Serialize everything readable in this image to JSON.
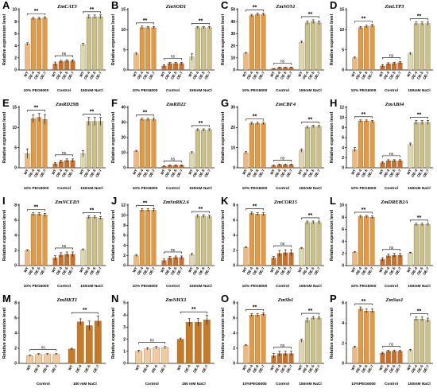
{
  "colors": {
    "peg": [
      "#f0b87a",
      "#e39a43",
      "#e39a43",
      "#e39a43"
    ],
    "ctrl": [
      "#cc6f28",
      "#cc6f28",
      "#cc6f28",
      "#cc6f28"
    ],
    "nacl": [
      "#dcd8b0",
      "#c9c189",
      "#c9c189",
      "#c9c189"
    ],
    "hk_ctrl": [
      "#f2caa0",
      "#f2caa0",
      "#f2caa0",
      "#f2caa0"
    ],
    "hk_nacl": [
      "#c77a26",
      "#c77a26",
      "#c77a26",
      "#c77a26"
    ]
  },
  "common": {
    "ylabel": "Relative expression level",
    "categories": [
      "WT",
      "OE-4",
      "OE-5",
      "OE-7"
    ],
    "sig": "**",
    "ns": "ns"
  },
  "chart_data": [
    {
      "letter": "A",
      "gene": "ZmCAT3",
      "type": "bar",
      "ylim": [
        0,
        10
      ],
      "yticks": [
        0,
        2,
        4,
        6,
        8,
        10
      ],
      "groups": [
        {
          "name": "10% PEG6000",
          "color": "peg",
          "values": [
            4.3,
            8.5,
            8.5,
            8.6
          ],
          "errors": [
            0.2,
            0.2,
            0.2,
            0.2
          ],
          "sig": "**"
        },
        {
          "name": "Control",
          "color": "ctrl",
          "values": [
            1.0,
            1.4,
            1.5,
            1.5
          ],
          "errors": [
            0.3,
            0.2,
            0.2,
            0.2
          ],
          "sig": "ns"
        },
        {
          "name": "150mM NaCl",
          "color": "nacl",
          "values": [
            4.2,
            8.8,
            8.8,
            8.8
          ],
          "errors": [
            0.2,
            0.3,
            0.3,
            0.3
          ],
          "sig": "**"
        }
      ]
    },
    {
      "letter": "B",
      "gene": "ZmSOD1",
      "type": "bar",
      "ylim": [
        0,
        15
      ],
      "yticks": [
        0,
        5,
        10,
        15
      ],
      "groups": [
        {
          "name": "10% PEG6000",
          "color": "peg",
          "values": [
            4.0,
            10.5,
            10.5,
            10.5
          ],
          "errors": [
            0.3,
            0.4,
            0.3,
            0.3
          ],
          "sig": "**"
        },
        {
          "name": "Control",
          "color": "ctrl",
          "values": [
            1.0,
            1.6,
            1.6,
            1.6
          ],
          "errors": [
            0.3,
            0.3,
            0.3,
            0.3
          ],
          "sig": "ns"
        },
        {
          "name": "150mM NaCl",
          "color": "nacl",
          "values": [
            3.2,
            10.5,
            10.5,
            10.5
          ],
          "errors": [
            0.8,
            0.3,
            0.3,
            0.3
          ],
          "sig": "**"
        }
      ]
    },
    {
      "letter": "C",
      "gene": "ZmSOS1",
      "type": "bar",
      "ylim": [
        0,
        50
      ],
      "yticks": [
        0,
        10,
        20,
        30,
        40,
        50
      ],
      "groups": [
        {
          "name": "10% PEG6000",
          "color": "peg",
          "values": [
            14,
            45,
            46,
            46
          ],
          "errors": [
            0.5,
            1,
            1,
            1
          ],
          "sig": "**"
        },
        {
          "name": "Control",
          "color": "ctrl",
          "values": [
            1.0,
            2.0,
            2.0,
            2.0
          ],
          "errors": [
            0.2,
            0.3,
            0.3,
            0.3
          ],
          "sig": "ns"
        },
        {
          "name": "150mM NaCl",
          "color": "nacl",
          "values": [
            23,
            39,
            40,
            39
          ],
          "errors": [
            0.8,
            1.5,
            1.5,
            1.5
          ],
          "sig": "**"
        }
      ]
    },
    {
      "letter": "D",
      "gene": "ZmLTP3",
      "type": "bar",
      "ylim": [
        0,
        15
      ],
      "yticks": [
        0,
        5,
        10,
        15
      ],
      "groups": [
        {
          "name": "10% PEG6000",
          "color": "peg",
          "values": [
            3.0,
            10.5,
            10.8,
            11.0
          ],
          "errors": [
            0.2,
            0.3,
            0.3,
            0.3
          ],
          "sig": "**"
        },
        {
          "name": "Control",
          "color": "ctrl",
          "values": [
            1.0,
            1.5,
            1.6,
            1.8
          ],
          "errors": [
            0.3,
            0.3,
            0.3,
            0.3
          ],
          "sig": "ns"
        },
        {
          "name": "150mM NaCl",
          "color": "nacl",
          "values": [
            4.0,
            11.5,
            11.5,
            11.5
          ],
          "errors": [
            0.3,
            0.4,
            0.4,
            0.4
          ],
          "sig": "**"
        }
      ]
    },
    {
      "letter": "E",
      "gene": "ZmRD29B",
      "type": "bar",
      "ylim": [
        0,
        15
      ],
      "yticks": [
        0,
        5,
        10,
        15
      ],
      "groups": [
        {
          "name": "10% PEG6000",
          "color": "peg",
          "values": [
            3.5,
            12.2,
            12.5,
            12.0
          ],
          "errors": [
            1.2,
            1.0,
            1.0,
            1.2
          ],
          "sig": "**"
        },
        {
          "name": "Control",
          "color": "ctrl",
          "values": [
            1.0,
            1.5,
            1.8,
            1.8
          ],
          "errors": [
            0.3,
            0.4,
            0.4,
            0.4
          ],
          "sig": "ns"
        },
        {
          "name": "150mM NaCl",
          "color": "nacl",
          "values": [
            3.5,
            11.5,
            11.5,
            11.5
          ],
          "errors": [
            0.8,
            1.0,
            1.0,
            1.0
          ],
          "sig": "**"
        }
      ]
    },
    {
      "letter": "F",
      "gene": "ZmRD22",
      "type": "bar",
      "ylim": [
        0,
        40
      ],
      "yticks": [
        0,
        10,
        20,
        30,
        40
      ],
      "groups": [
        {
          "name": "10% PEG6000",
          "color": "peg",
          "values": [
            11,
            32,
            32,
            32
          ],
          "errors": [
            0.5,
            0.8,
            0.8,
            0.8
          ],
          "sig": "**"
        },
        {
          "name": "Control",
          "color": "ctrl",
          "values": [
            1.0,
            1.5,
            1.6,
            1.6
          ],
          "errors": [
            0.3,
            0.3,
            0.3,
            0.3
          ],
          "sig": "ns"
        },
        {
          "name": "150mM NaCl",
          "color": "nacl",
          "values": [
            10,
            25,
            25,
            25
          ],
          "errors": [
            0.6,
            0.8,
            0.8,
            0.8
          ],
          "sig": "**"
        }
      ]
    },
    {
      "letter": "G",
      "gene": "ZmCBF4",
      "type": "bar",
      "ylim": [
        0,
        30
      ],
      "yticks": [
        0,
        10,
        20,
        30
      ],
      "groups": [
        {
          "name": "10% PEG6000",
          "color": "peg",
          "values": [
            7.5,
            22,
            22,
            22
          ],
          "errors": [
            0.5,
            0.6,
            0.6,
            0.6
          ],
          "sig": "**"
        },
        {
          "name": "Control",
          "color": "ctrl",
          "values": [
            1.0,
            1.5,
            1.5,
            1.5
          ],
          "errors": [
            0.3,
            0.3,
            0.3,
            0.3
          ],
          "sig": "ns"
        },
        {
          "name": "150mM NaCl",
          "color": "nacl",
          "values": [
            8.5,
            20,
            20.5,
            20.5
          ],
          "errors": [
            0.8,
            0.6,
            0.6,
            0.6
          ],
          "sig": "**"
        }
      ]
    },
    {
      "letter": "H",
      "gene": "ZmABI4",
      "type": "bar",
      "ylim": [
        0,
        12
      ],
      "yticks": [
        0,
        2,
        4,
        6,
        8,
        10,
        12
      ],
      "groups": [
        {
          "name": "10% PEG6000",
          "color": "peg",
          "values": [
            3.6,
            9.3,
            9.3,
            9.2
          ],
          "errors": [
            0.4,
            0.2,
            0.2,
            0.2
          ],
          "sig": "**"
        },
        {
          "name": "Control",
          "color": "ctrl",
          "values": [
            1.0,
            1.4,
            1.4,
            1.4
          ],
          "errors": [
            0.2,
            0.2,
            0.2,
            0.2
          ],
          "sig": "ns"
        },
        {
          "name": "150mM NaCl",
          "color": "nacl",
          "values": [
            4.6,
            9.0,
            9.0,
            9.0
          ],
          "errors": [
            0.3,
            0.4,
            0.4,
            0.4
          ],
          "sig": "**"
        }
      ]
    },
    {
      "letter": "I",
      "gene": "ZmNCED3",
      "type": "bar",
      "ylim": [
        0,
        8
      ],
      "yticks": [
        0,
        2,
        4,
        6,
        8
      ],
      "groups": [
        {
          "name": "10% PEG6000",
          "color": "peg",
          "values": [
            2.0,
            6.8,
            6.8,
            6.7
          ],
          "errors": [
            0.1,
            0.2,
            0.2,
            0.2
          ],
          "sig": "**"
        },
        {
          "name": "Control",
          "color": "ctrl",
          "values": [
            1.0,
            1.4,
            1.5,
            1.5
          ],
          "errors": [
            0.3,
            0.3,
            0.3,
            0.3
          ],
          "sig": "ns"
        },
        {
          "name": "150mM NaCl",
          "color": "nacl",
          "values": [
            2.1,
            6.4,
            6.4,
            6.3
          ],
          "errors": [
            0.1,
            0.2,
            0.2,
            0.2
          ],
          "sig": "**"
        }
      ]
    },
    {
      "letter": "J",
      "gene": "ZmSnRK2.6",
      "type": "bar",
      "ylim": [
        0,
        12
      ],
      "yticks": [
        0,
        2,
        4,
        6,
        8,
        10,
        12
      ],
      "groups": [
        {
          "name": "10% PEG6000",
          "color": "peg",
          "values": [
            2.0,
            11.0,
            11.0,
            11.0
          ],
          "errors": [
            0.2,
            0.3,
            0.3,
            0.3
          ],
          "sig": "**"
        },
        {
          "name": "Control",
          "color": "ctrl",
          "values": [
            1.0,
            1.5,
            1.6,
            1.6
          ],
          "errors": [
            0.3,
            0.3,
            0.3,
            0.3
          ],
          "sig": "ns"
        },
        {
          "name": "150mM NaCl",
          "color": "nacl",
          "values": [
            2.2,
            9.8,
            9.8,
            9.7
          ],
          "errors": [
            0.2,
            0.3,
            0.3,
            0.3
          ],
          "sig": "**"
        }
      ]
    },
    {
      "letter": "K",
      "gene": "ZmCOR15",
      "type": "bar",
      "ylim": [
        0,
        8
      ],
      "yticks": [
        0,
        2,
        4,
        6,
        8
      ],
      "groups": [
        {
          "name": "10% PEG6000",
          "color": "peg",
          "values": [
            2.4,
            6.9,
            6.8,
            6.8
          ],
          "errors": [
            0.1,
            0.2,
            0.2,
            0.2
          ],
          "sig": "**"
        },
        {
          "name": "Control",
          "color": "ctrl",
          "values": [
            1.0,
            1.6,
            1.7,
            1.7
          ],
          "errors": [
            0.2,
            0.4,
            0.4,
            0.4
          ],
          "sig": "ns"
        },
        {
          "name": "150mM NaCl",
          "color": "nacl",
          "values": [
            2.3,
            5.7,
            5.7,
            5.7
          ],
          "errors": [
            0.1,
            0.2,
            0.2,
            0.2
          ],
          "sig": "**"
        }
      ]
    },
    {
      "letter": "L",
      "gene": "ZmDREB2A",
      "type": "bar",
      "ylim": [
        0,
        10
      ],
      "yticks": [
        0,
        2,
        4,
        6,
        8,
        10
      ],
      "groups": [
        {
          "name": "10% PEG6000",
          "color": "peg",
          "values": [
            2.2,
            8.1,
            8.1,
            8.0
          ],
          "errors": [
            0.1,
            0.2,
            0.2,
            0.2
          ],
          "sig": "**"
        },
        {
          "name": "Control",
          "color": "ctrl",
          "values": [
            1.0,
            1.6,
            1.7,
            1.7
          ],
          "errors": [
            0.3,
            0.3,
            0.3,
            0.3
          ],
          "sig": "ns"
        },
        {
          "name": "150mM NaCl",
          "color": "nacl",
          "values": [
            2.1,
            6.8,
            6.8,
            6.8
          ],
          "errors": [
            0.1,
            0.2,
            0.2,
            0.2
          ],
          "sig": "**"
        }
      ]
    },
    {
      "letter": "M",
      "gene": "ZmHKT1",
      "type": "bar",
      "ylim": [
        0,
        8
      ],
      "yticks": [
        0,
        2,
        4,
        6,
        8
      ],
      "groups": [
        {
          "name": "Control",
          "color": "hk_ctrl",
          "values": [
            1.0,
            1.2,
            1.2,
            1.2
          ],
          "errors": [
            0.1,
            0.1,
            0.1,
            0.1
          ],
          "sig": "ns"
        },
        {
          "name": "150 mM NaCl",
          "color": "hk_nacl",
          "values": [
            1.9,
            5.5,
            5.0,
            5.6
          ],
          "errors": [
            0.1,
            0.4,
            0.6,
            0.7
          ],
          "sig": "**"
        }
      ]
    },
    {
      "letter": "N",
      "gene": "ZmNHX1",
      "type": "bar",
      "ylim": [
        0,
        5
      ],
      "yticks": [
        0,
        1,
        2,
        3,
        4,
        5
      ],
      "groups": [
        {
          "name": "Control",
          "color": "hk_ctrl",
          "values": [
            1.0,
            1.2,
            1.3,
            1.3
          ],
          "errors": [
            0.1,
            0.1,
            0.1,
            0.1
          ],
          "sig": "ns"
        },
        {
          "name": "150 mM NaCl",
          "color": "hk_nacl",
          "values": [
            2.0,
            3.4,
            3.4,
            3.6
          ],
          "errors": [
            0.1,
            0.3,
            0.3,
            0.4
          ],
          "sig": "**"
        }
      ]
    },
    {
      "letter": "O",
      "gene": "ZmSh1",
      "type": "bar",
      "ylim": [
        0,
        8
      ],
      "yticks": [
        0,
        2,
        4,
        6,
        8
      ],
      "groups": [
        {
          "name": "10%PEG6000",
          "color": "peg",
          "values": [
            2.4,
            6.4,
            6.4,
            6.5
          ],
          "errors": [
            0.1,
            0.2,
            0.2,
            0.2
          ],
          "sig": "**"
        },
        {
          "name": "Control",
          "color": "ctrl",
          "values": [
            1.0,
            1.3,
            1.3,
            1.3
          ],
          "errors": [
            0.3,
            0.3,
            0.3,
            0.3
          ],
          "sig": "ns"
        },
        {
          "name": "150mM NaCl",
          "color": "nacl",
          "values": [
            3.0,
            5.7,
            6.0,
            6.0
          ],
          "errors": [
            0.2,
            0.3,
            0.2,
            0.2
          ],
          "sig": "**"
        }
      ]
    },
    {
      "letter": "P",
      "gene": "ZmSus1",
      "type": "bar",
      "ylim": [
        0,
        6
      ],
      "yticks": [
        0,
        2,
        4,
        6
      ],
      "groups": [
        {
          "name": "10%PEG6000",
          "color": "peg",
          "values": [
            1.6,
            5.4,
            5.2,
            5.2
          ],
          "errors": [
            0.1,
            0.2,
            0.2,
            0.2
          ],
          "sig": "**"
        },
        {
          "name": "Control",
          "color": "ctrl",
          "values": [
            1.0,
            1.2,
            1.2,
            1.2
          ],
          "errors": [
            0.1,
            0.1,
            0.1,
            0.1
          ],
          "sig": "ns"
        },
        {
          "name": "150mM NaCl",
          "color": "nacl",
          "values": [
            1.3,
            4.4,
            4.4,
            4.3
          ],
          "errors": [
            0.1,
            0.2,
            0.2,
            0.2
          ],
          "sig": "**"
        }
      ]
    }
  ]
}
